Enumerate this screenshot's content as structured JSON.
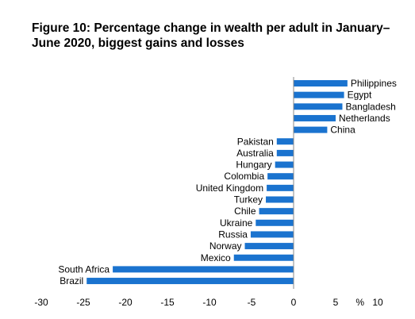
{
  "chart_data": {
    "type": "bar",
    "orientation": "horizontal",
    "title": "Figure 10: Percentage change in wealth per adult in January–June 2020, biggest gains and losses",
    "xlabel": "",
    "ylabel": "",
    "unit_label": "%",
    "xlim": [
      -30,
      10
    ],
    "x_ticks": [
      "-30",
      "-25",
      "-20",
      "-15",
      "-10",
      "-5",
      "0",
      "5",
      "10"
    ],
    "grid": false,
    "legend": "none",
    "bar_color": "#1a73cf",
    "categories": [
      "Philippines",
      "Egypt",
      "Bangladesh",
      "Netherlands",
      "China",
      "Pakistan",
      "Australia",
      "Hungary",
      "Colombia",
      "United Kingdom",
      "Turkey",
      "Chile",
      "Ukraine",
      "Russia",
      "Norway",
      "Mexico",
      "South Africa",
      "Brazil"
    ],
    "values": [
      6.4,
      6.0,
      5.8,
      5.0,
      4.0,
      -2.0,
      -2.0,
      -2.2,
      -3.1,
      -3.2,
      -3.3,
      -4.1,
      -4.5,
      -5.1,
      -5.8,
      -7.1,
      -21.5,
      -24.6
    ]
  }
}
